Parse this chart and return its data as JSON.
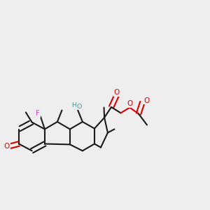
{
  "bg_color": "#eeeeee",
  "bond_color": "#1a1a1a",
  "bond_lw": 1.4,
  "atom_colors": {
    "O": "#e00000",
    "F": "#cc44cc",
    "HO": "#4a9090"
  },
  "font_size": 7.5
}
